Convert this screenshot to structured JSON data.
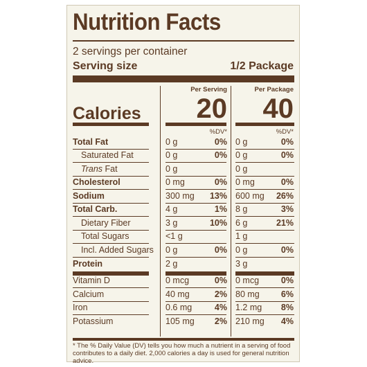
{
  "label": {
    "title": "Nutrition Facts",
    "servings_per_container": "2 servings per container",
    "serving_size_label": "Serving size",
    "serving_size_value": "1/2 Package",
    "col1_header": "Per Serving",
    "col2_header": "Per Package",
    "calories_label": "Calories",
    "calories_serving": "20",
    "calories_package": "40",
    "dv_header": "%DV*",
    "footnote": "* The % Daily Value (DV) tells you how much a nutrient in a serving of food contributes to a daily diet. 2,000 calories a day is used for general nutrition advice."
  },
  "rows": [
    {
      "name": "Total Fat",
      "bold": true,
      "indent": 0,
      "amt1": "0 g",
      "dv1": "0%",
      "amt2": "0 g",
      "dv2": "0%"
    },
    {
      "name": "Saturated Fat",
      "bold": false,
      "indent": 1,
      "amt1": "0 g",
      "dv1": "0%",
      "amt2": "0 g",
      "dv2": "0%"
    },
    {
      "name_italic": "Trans",
      "name": " Fat",
      "bold": false,
      "indent": 1,
      "amt1": "0 g",
      "dv1": "",
      "amt2": "0 g",
      "dv2": ""
    },
    {
      "name": "Cholesterol",
      "bold": true,
      "indent": 0,
      "amt1": "0 mg",
      "dv1": "0%",
      "amt2": "0 mg",
      "dv2": "0%"
    },
    {
      "name": "Sodium",
      "bold": true,
      "indent": 0,
      "amt1": "300 mg",
      "dv1": "13%",
      "amt2": "600 mg",
      "dv2": "26%"
    },
    {
      "name": "Total Carb.",
      "bold": true,
      "indent": 0,
      "amt1": "4 g",
      "dv1": "1%",
      "amt2": "8 g",
      "dv2": "3%"
    },
    {
      "name": "Dietary Fiber",
      "bold": false,
      "indent": 1,
      "amt1": "3 g",
      "dv1": "10%",
      "amt2": "6 g",
      "dv2": "21%"
    },
    {
      "name": "Total Sugars",
      "bold": false,
      "indent": 1,
      "amt1": "<1 g",
      "dv1": "",
      "amt2": "1 g",
      "dv2": ""
    },
    {
      "name": "Incl. Added Sugars",
      "bold": false,
      "indent": 1,
      "amt1": "0 g",
      "dv1": "0%",
      "amt2": "0 g",
      "dv2": "0%"
    },
    {
      "name": "Protein",
      "bold": true,
      "indent": 0,
      "amt1": "2 g",
      "dv1": "",
      "amt2": "3 g",
      "dv2": ""
    },
    {
      "name": "Vitamin D",
      "bold": false,
      "indent": 0,
      "amt1": "0 mcg",
      "dv1": "0%",
      "amt2": "0 mcg",
      "dv2": "0%"
    },
    {
      "name": "Calcium",
      "bold": false,
      "indent": 0,
      "amt1": "40 mg",
      "dv1": "2%",
      "amt2": "80 mg",
      "dv2": "6%"
    },
    {
      "name": "Iron",
      "bold": false,
      "indent": 0,
      "amt1": "0.6 mg",
      "dv1": "4%",
      "amt2": "1.2 mg",
      "dv2": "8%"
    },
    {
      "name": "Potassium",
      "bold": false,
      "indent": 0,
      "amt1": "105 mg",
      "dv1": "2%",
      "amt2": "210 mg",
      "dv2": "4%"
    }
  ]
}
